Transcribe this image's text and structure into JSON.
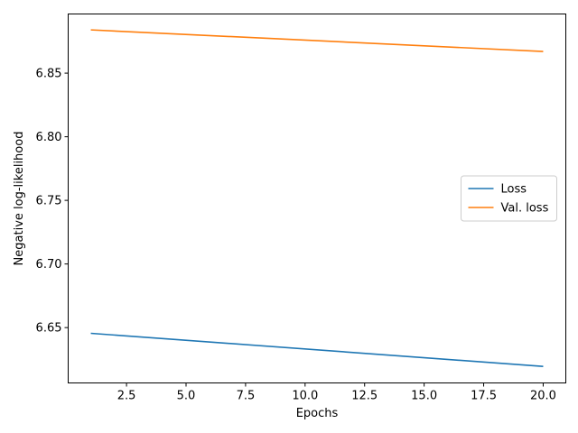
{
  "chart_data": {
    "type": "line",
    "title": "",
    "xlabel": "Epochs",
    "ylabel": "Negative log-likelihood",
    "xlim": [
      0.05,
      20.95
    ],
    "ylim": [
      6.6065,
      6.8965
    ],
    "xticks": [
      2.5,
      5.0,
      7.5,
      10.0,
      12.5,
      15.0,
      17.5,
      20.0
    ],
    "xtick_labels": [
      "2.5",
      "5.0",
      "7.5",
      "10.0",
      "12.5",
      "15.0",
      "17.5",
      "20.0"
    ],
    "yticks": [
      6.65,
      6.7,
      6.75,
      6.8,
      6.85
    ],
    "ytick_labels": [
      "6.65",
      "6.70",
      "6.75",
      "6.80",
      "6.85"
    ],
    "grid": false,
    "legend_position": "center-right",
    "x": [
      1,
      20
    ],
    "series": [
      {
        "name": "Loss",
        "color": "#1f77b4",
        "values": [
          6.6455,
          6.6195
        ]
      },
      {
        "name": "Val. loss",
        "color": "#ff7f0e",
        "values": [
          6.884,
          6.867
        ]
      }
    ]
  }
}
